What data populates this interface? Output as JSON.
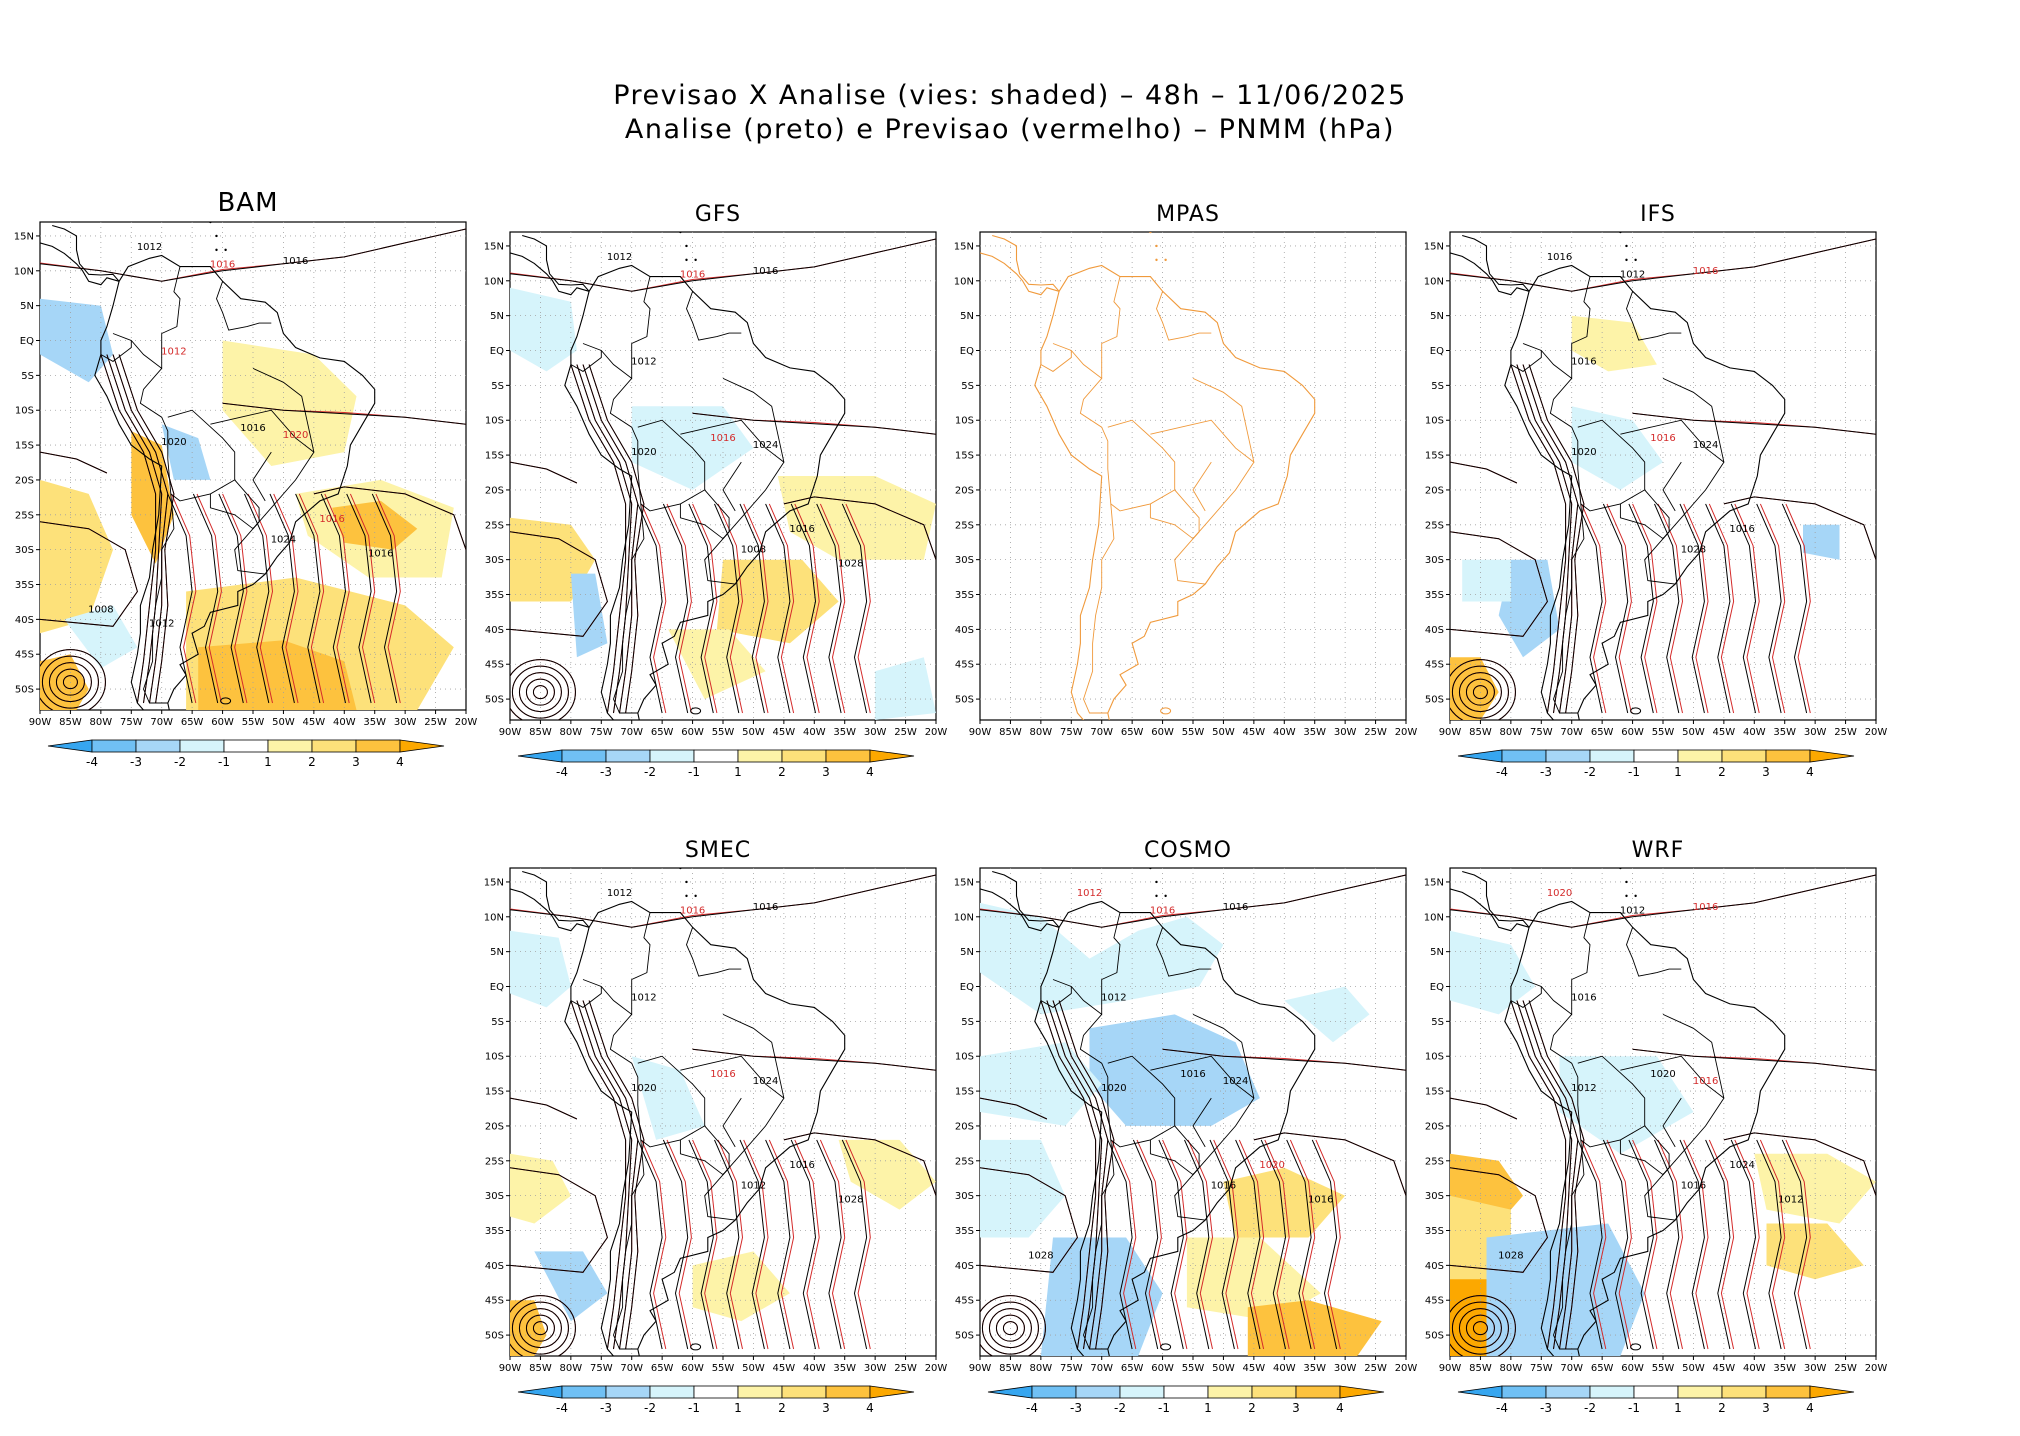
{
  "header": {
    "title_line1": "Previsao X Analise (vies: shaded) – 48h – 11/06/2025",
    "title_line2": "Analise (preto) e Previsao (vermelho) – PNMM (hPa)"
  },
  "axes": {
    "lat_labels": [
      "15N",
      "10N",
      "5N",
      "EQ",
      "5S",
      "10S",
      "15S",
      "20S",
      "25S",
      "30S",
      "35S",
      "40S",
      "45S",
      "50S"
    ],
    "lon_labels": [
      "90W",
      "85W",
      "80W",
      "75W",
      "70W",
      "65W",
      "60W",
      "55W",
      "50W",
      "45W",
      "40W",
      "35W",
      "30W",
      "25W",
      "20W"
    ]
  },
  "colorbar": {
    "labels": [
      "-4",
      "-3",
      "-2",
      "-1",
      "1",
      "2",
      "3",
      "4"
    ],
    "colors": [
      "#36a6f0",
      "#70c0f4",
      "#a6d6f7",
      "#d6f4fb",
      "#ffffff",
      "#fdf3a8",
      "#fde17a",
      "#fdc23e",
      "#fca800"
    ]
  },
  "colors": {
    "analysis_contour": "#000000",
    "forecast_contour": "#d42a2a",
    "coastline_mpas": "#f09a3c",
    "grid": "#a0a0a0"
  },
  "panels": [
    {
      "id": "bam",
      "name": "BAM",
      "labels": [
        {
          "t": "1012",
          "c": "black"
        },
        {
          "t": "1016",
          "c": "red"
        },
        {
          "t": "1016",
          "c": "black"
        },
        {
          "t": "1012",
          "c": "red"
        },
        {
          "t": "1020",
          "c": "black"
        },
        {
          "t": "1016",
          "c": "black"
        },
        {
          "t": "1020",
          "c": "red"
        },
        {
          "t": "1016",
          "c": "red"
        },
        {
          "t": "1024",
          "c": "black"
        },
        {
          "t": "1016",
          "c": "black"
        },
        {
          "t": "1008",
          "c": "black"
        },
        {
          "t": "1012",
          "c": "black"
        }
      ]
    },
    {
      "id": "gfs",
      "name": "GFS",
      "labels": [
        {
          "t": "1012",
          "c": "black"
        },
        {
          "t": "1016",
          "c": "red"
        },
        {
          "t": "1016",
          "c": "black"
        },
        {
          "t": "1012",
          "c": "black"
        },
        {
          "t": "1020",
          "c": "black"
        },
        {
          "t": "1016",
          "c": "red"
        },
        {
          "t": "1024",
          "c": "black"
        },
        {
          "t": "1016",
          "c": "black"
        },
        {
          "t": "1008",
          "c": "black"
        },
        {
          "t": "1028",
          "c": "black"
        }
      ]
    },
    {
      "id": "mpas",
      "name": "MPAS",
      "labels": []
    },
    {
      "id": "ifs",
      "name": "IFS",
      "labels": [
        {
          "t": "1016",
          "c": "black"
        },
        {
          "t": "1012",
          "c": "black"
        },
        {
          "t": "1016",
          "c": "red"
        },
        {
          "t": "1016",
          "c": "black"
        },
        {
          "t": "1020",
          "c": "black"
        },
        {
          "t": "1016",
          "c": "red"
        },
        {
          "t": "1024",
          "c": "black"
        },
        {
          "t": "1016",
          "c": "black"
        },
        {
          "t": "1028",
          "c": "black"
        }
      ]
    },
    {
      "id": "smec",
      "name": "SMEC",
      "labels": [
        {
          "t": "1012",
          "c": "black"
        },
        {
          "t": "1016",
          "c": "red"
        },
        {
          "t": "1016",
          "c": "black"
        },
        {
          "t": "1012",
          "c": "black"
        },
        {
          "t": "1020",
          "c": "black"
        },
        {
          "t": "1016",
          "c": "red"
        },
        {
          "t": "1024",
          "c": "black"
        },
        {
          "t": "1016",
          "c": "black"
        },
        {
          "t": "1012",
          "c": "black"
        },
        {
          "t": "1028",
          "c": "black"
        }
      ]
    },
    {
      "id": "cosmo",
      "name": "COSMO",
      "labels": [
        {
          "t": "1012",
          "c": "red"
        },
        {
          "t": "1016",
          "c": "red"
        },
        {
          "t": "1016",
          "c": "black"
        },
        {
          "t": "1012",
          "c": "black"
        },
        {
          "t": "1020",
          "c": "black"
        },
        {
          "t": "1016",
          "c": "black"
        },
        {
          "t": "1024",
          "c": "black"
        },
        {
          "t": "1020",
          "c": "red"
        },
        {
          "t": "1016",
          "c": "black"
        },
        {
          "t": "1016",
          "c": "black"
        },
        {
          "t": "1028",
          "c": "black"
        }
      ]
    },
    {
      "id": "wrf",
      "name": "WRF",
      "labels": [
        {
          "t": "1020",
          "c": "red"
        },
        {
          "t": "1012",
          "c": "black"
        },
        {
          "t": "1016",
          "c": "red"
        },
        {
          "t": "1016",
          "c": "black"
        },
        {
          "t": "1012",
          "c": "black"
        },
        {
          "t": "1020",
          "c": "black"
        },
        {
          "t": "1016",
          "c": "red"
        },
        {
          "t": "1024",
          "c": "black"
        },
        {
          "t": "1016",
          "c": "black"
        },
        {
          "t": "1012",
          "c": "black"
        },
        {
          "t": "1028",
          "c": "black"
        }
      ]
    }
  ]
}
